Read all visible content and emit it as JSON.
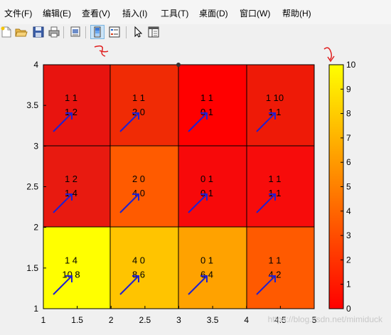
{
  "menu": [
    "文件(F)",
    "编辑(E)",
    "查看(V)",
    "插入(I)",
    "工具(T)",
    "桌面(D)",
    "窗口(W)",
    "帮助(H)"
  ],
  "toolbar": {
    "icons": [
      "new-file-icon",
      "open-folder-icon",
      "save-icon",
      "print-icon",
      "print-preview-icon",
      "colorbar-icon",
      "legend-icon",
      "pointer-icon",
      "property-editor-icon"
    ]
  },
  "chart_data": {
    "type": "heatmap",
    "xlim": [
      1,
      5
    ],
    "ylim": [
      1,
      4
    ],
    "x_ticks": [
      "1",
      "1.5",
      "2",
      "2.5",
      "3",
      "3.5",
      "4",
      "4.5",
      "5"
    ],
    "y_ticks": [
      "1",
      "1.5",
      "2",
      "2.5",
      "3",
      "3.5",
      "4"
    ],
    "grid": "cell borders",
    "colorbar": {
      "position": "right",
      "range": [
        0,
        10
      ],
      "ticks": [
        "0",
        "1",
        "2",
        "3",
        "4",
        "5",
        "6",
        "7",
        "8",
        "9",
        "10"
      ]
    },
    "cells": [
      {
        "row": 0,
        "col": 0,
        "color": "#e8140f",
        "label": [
          "1 1",
          "1 2"
        ]
      },
      {
        "row": 0,
        "col": 1,
        "color": "#f02b05",
        "label": [
          "1 1",
          "2 0"
        ]
      },
      {
        "row": 0,
        "col": 2,
        "color": "#ff0000",
        "label": [
          "1 1",
          "0 1"
        ]
      },
      {
        "row": 0,
        "col": 3,
        "color": "#ee1a07",
        "label": [
          "1 10",
          "1 1"
        ]
      },
      {
        "row": 1,
        "col": 0,
        "color": "#e81a10",
        "label": [
          "1 2",
          "1 4"
        ]
      },
      {
        "row": 1,
        "col": 1,
        "color": "#ff5b00",
        "label": [
          "2 0",
          "4 0"
        ]
      },
      {
        "row": 1,
        "col": 2,
        "color": "#f7090a",
        "label": [
          "0 1",
          "0 1"
        ]
      },
      {
        "row": 1,
        "col": 3,
        "color": "#f70c0b",
        "label": [
          "1 1",
          "1 1"
        ]
      },
      {
        "row": 2,
        "col": 0,
        "color": "#ffff00",
        "label": [
          "1 4",
          "10 8"
        ]
      },
      {
        "row": 2,
        "col": 1,
        "color": "#ffc400",
        "label": [
          "4 0",
          "8 6"
        ]
      },
      {
        "row": 2,
        "col": 2,
        "color": "#ffa200",
        "label": [
          "0 1",
          "6 4"
        ]
      },
      {
        "row": 2,
        "col": 3,
        "color": "#ff5a00",
        "label": [
          "1 1",
          "4 2"
        ]
      }
    ]
  },
  "watermark": "https://blog.csdn.net/mimiduck"
}
